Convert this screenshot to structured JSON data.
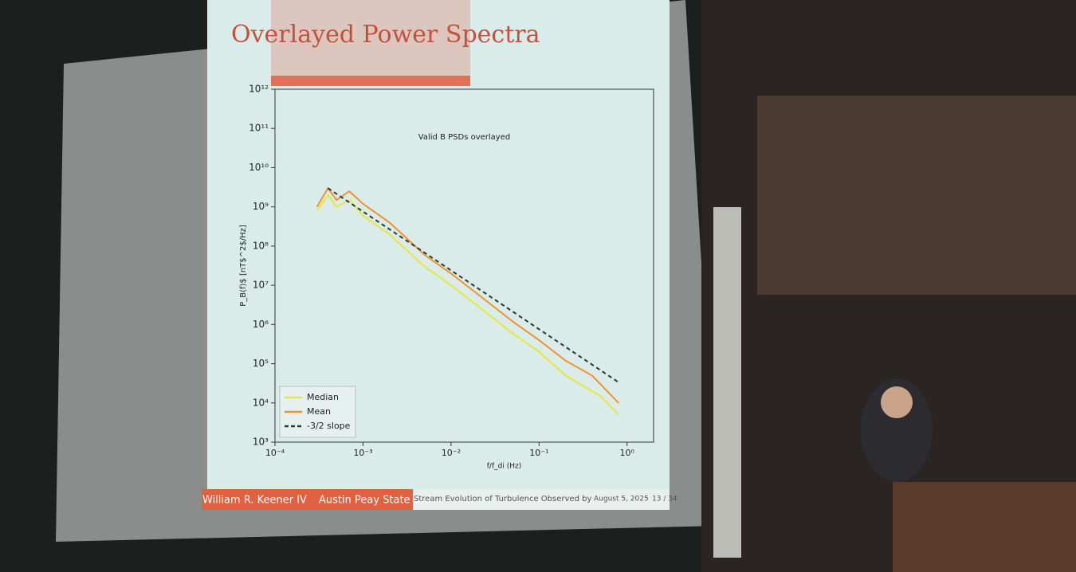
{
  "slide": {
    "title": "Overlayed Power Spectra",
    "footer": {
      "author": "William R. Keener IV",
      "institution": "Austin Peay State Uni",
      "talk": "Stream Evolution of Turbulence Observed by",
      "date": "August 5, 2025",
      "page": "13 / 34"
    }
  },
  "chart_data": {
    "type": "line",
    "title": "Valid B PSDs overlayed",
    "x_label": "f/f_di (Hz)",
    "y_label": "P_B(f)$ [nT$^2$/Hz]",
    "xscale": "log",
    "yscale": "log",
    "xlim": [
      0.0001,
      2
    ],
    "ylim": [
      1000,
      1000000000000
    ],
    "xticks": [
      {
        "value": 0.0001,
        "label": "10⁻⁴"
      },
      {
        "value": 0.001,
        "label": "10⁻³"
      },
      {
        "value": 0.01,
        "label": "10⁻²"
      },
      {
        "value": 0.1,
        "label": "10⁻¹"
      },
      {
        "value": 1,
        "label": "10⁰"
      }
    ],
    "yticks": [
      {
        "value": 1000,
        "label": "10³"
      },
      {
        "value": 10000,
        "label": "10⁴"
      },
      {
        "value": 100000,
        "label": "10⁵"
      },
      {
        "value": 1000000,
        "label": "10⁶"
      },
      {
        "value": 10000000,
        "label": "10⁷"
      },
      {
        "value": 100000000,
        "label": "10⁸"
      },
      {
        "value": 1000000000,
        "label": "10⁹"
      },
      {
        "value": 10000000000,
        "label": "10¹⁰"
      },
      {
        "value": 100000000000,
        "label": "10¹¹"
      },
      {
        "value": 1000000000000,
        "label": "10¹²"
      }
    ],
    "x": [
      0.0003,
      0.0004,
      0.0005,
      0.0007,
      0.001,
      0.002,
      0.005,
      0.01,
      0.02,
      0.05,
      0.1,
      0.2,
      0.4,
      0.5,
      0.8
    ],
    "series": [
      {
        "name": "Median",
        "color": "#e8e83a",
        "style": "solid",
        "values": [
          800000000,
          2000000000,
          1000000000,
          1500000000,
          600000000,
          200000000,
          30000000,
          10000000,
          3000000,
          600000,
          200000,
          50000,
          20000,
          15000,
          5000
        ]
      },
      {
        "name": "Mean",
        "color": "#f0932e",
        "style": "solid",
        "values": [
          1000000000,
          3000000000,
          1500000000,
          2500000000,
          1200000000,
          400000000,
          60000000,
          20000000,
          6000000,
          1200000,
          400000,
          120000,
          50000,
          30000,
          10000
        ]
      },
      {
        "name": "-3/2 slope",
        "color": "#2a3a3a",
        "style": "dashed",
        "values": [
          null,
          3000000000,
          null,
          null,
          null,
          null,
          null,
          null,
          null,
          null,
          null,
          null,
          null,
          null,
          33500
        ]
      }
    ],
    "legend": "lower left"
  }
}
